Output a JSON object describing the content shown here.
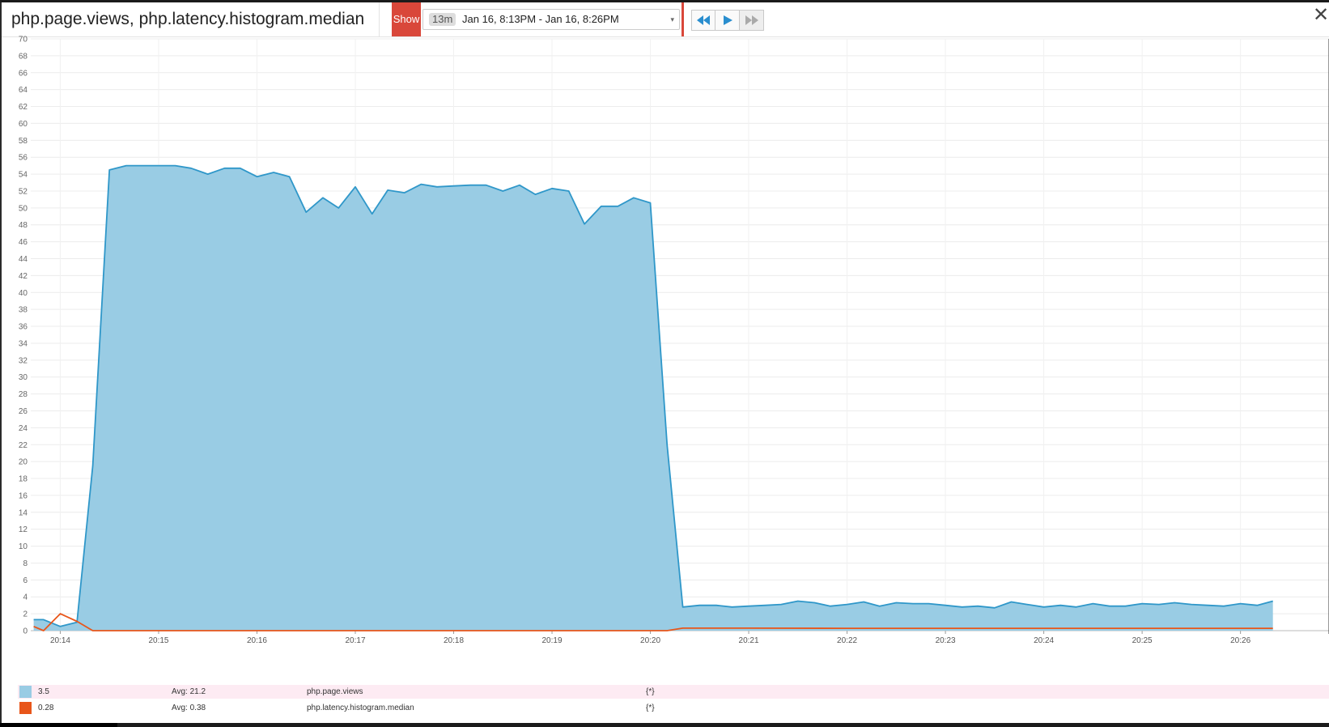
{
  "header": {
    "title": "php.page.views, php.latency.histogram.median",
    "show_label": "Show",
    "range_short": "13m",
    "range_text": "Jan 16, 8:13PM - Jan 16, 8:26PM",
    "nav": {
      "back_icon": "rewind-icon",
      "play_icon": "play-icon",
      "forward_icon": "fast-forward-icon"
    },
    "close_icon": "close-icon",
    "close_glyph": "✕",
    "caret_glyph": "▾"
  },
  "colors": {
    "views_line": "#2f97c9",
    "views_fill": "#99cce4",
    "latency_line": "#e8561a",
    "show_button": "#d9473a",
    "nav_icon": "#2a8ecf",
    "legend_highlight": "#fdebf3"
  },
  "chart_data": {
    "type": "area",
    "ylim": [
      0,
      70
    ],
    "yticks": [
      0,
      2,
      4,
      6,
      8,
      10,
      12,
      14,
      16,
      18,
      20,
      22,
      24,
      26,
      28,
      30,
      32,
      34,
      36,
      38,
      40,
      42,
      44,
      46,
      48,
      50,
      52,
      54,
      56,
      58,
      60,
      62,
      64,
      66,
      68,
      70
    ],
    "xlim_minutes": [
      13.7,
      26.9
    ],
    "xticks": [
      {
        "t": 14,
        "label": "20:14"
      },
      {
        "t": 15,
        "label": "20:15"
      },
      {
        "t": 16,
        "label": "20:16"
      },
      {
        "t": 17,
        "label": "20:17"
      },
      {
        "t": 18,
        "label": "20:18"
      },
      {
        "t": 19,
        "label": "20:19"
      },
      {
        "t": 20,
        "label": "20:20"
      },
      {
        "t": 21,
        "label": "20:21"
      },
      {
        "t": 22,
        "label": "20:22"
      },
      {
        "t": 23,
        "label": "20:23"
      },
      {
        "t": 24,
        "label": "20:24"
      },
      {
        "t": 25,
        "label": "20:25"
      },
      {
        "t": 26,
        "label": "20:26"
      }
    ],
    "grid": true,
    "series": [
      {
        "name": "php.page.views",
        "x_minutes": [
          13.73,
          13.83,
          14.0,
          14.17,
          14.33,
          14.5,
          14.67,
          14.83,
          15.0,
          15.17,
          15.33,
          15.5,
          15.67,
          15.83,
          16.0,
          16.17,
          16.33,
          16.5,
          16.67,
          16.83,
          17.0,
          17.17,
          17.33,
          17.5,
          17.67,
          17.83,
          18.0,
          18.17,
          18.33,
          18.5,
          18.67,
          18.83,
          19.0,
          19.17,
          19.33,
          19.5,
          19.67,
          19.83,
          20.0,
          20.17,
          20.33,
          20.5,
          20.67,
          20.83,
          21.0,
          21.17,
          21.33,
          21.5,
          21.67,
          21.83,
          22.0,
          22.17,
          22.33,
          22.5,
          22.67,
          22.83,
          23.0,
          23.17,
          23.33,
          23.5,
          23.67,
          23.83,
          24.0,
          24.17,
          24.33,
          24.5,
          24.67,
          24.83,
          25.0,
          25.17,
          25.33,
          25.5,
          25.67,
          25.83,
          26.0,
          26.17,
          26.33
        ],
        "values": [
          1.3,
          1.3,
          0.5,
          1.0,
          19.5,
          54.5,
          55.0,
          55.0,
          55.0,
          55.0,
          54.7,
          54.0,
          54.7,
          54.7,
          53.7,
          54.2,
          53.7,
          49.5,
          51.2,
          50.0,
          52.5,
          49.3,
          52.1,
          51.8,
          52.8,
          52.5,
          52.6,
          52.7,
          52.7,
          52.0,
          52.7,
          51.6,
          52.3,
          52.0,
          48.1,
          50.2,
          50.2,
          51.2,
          50.6,
          22.0,
          2.8,
          3.0,
          3.0,
          2.8,
          2.9,
          3.0,
          3.1,
          3.5,
          3.3,
          2.9,
          3.1,
          3.4,
          2.9,
          3.3,
          3.2,
          3.2,
          3.0,
          2.8,
          2.9,
          2.7,
          3.4,
          3.1,
          2.8,
          3.0,
          2.8,
          3.2,
          2.9,
          2.9,
          3.2,
          3.1,
          3.3,
          3.1,
          3.0,
          2.9,
          3.2,
          3.0,
          3.5
        ]
      },
      {
        "name": "php.latency.histogram.median",
        "x_minutes": [
          13.73,
          13.83,
          14.0,
          14.17,
          14.33,
          14.5,
          16.0,
          18.0,
          20.0,
          20.17,
          20.33,
          20.5,
          21.0,
          22.0,
          23.0,
          24.0,
          25.0,
          26.0,
          26.33
        ],
        "values": [
          0.5,
          0.0,
          2.0,
          1.1,
          0.0,
          0.0,
          0.0,
          0.0,
          0.0,
          0.0,
          0.3,
          0.3,
          0.3,
          0.28,
          0.28,
          0.28,
          0.28,
          0.28,
          0.28
        ]
      }
    ]
  },
  "legend": [
    {
      "value": "3.5",
      "avg": "Avg: 21.2",
      "name": "php.page.views",
      "scope": "{*}"
    },
    {
      "value": "0.28",
      "avg": "Avg: 0.38",
      "name": "php.latency.histogram.median",
      "scope": "{*}"
    }
  ]
}
